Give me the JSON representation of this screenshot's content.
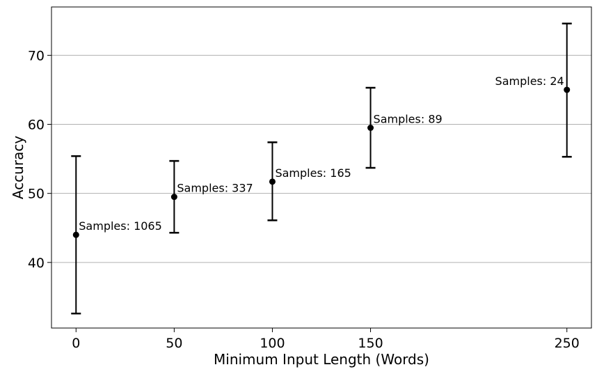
{
  "chart_data": {
    "type": "scatter",
    "title": "",
    "xlabel": "Minimum Input Length (Words)",
    "ylabel": "Accuracy",
    "xlim": [
      -12.5,
      262.5
    ],
    "ylim": [
      30.5,
      77
    ],
    "xticks": [
      0,
      50,
      100,
      150,
      250
    ],
    "yticks": [
      40,
      50,
      60,
      70
    ],
    "grid": "horizontal",
    "points": [
      {
        "x": 0,
        "y": 44.0,
        "err_low": 32.6,
        "err_high": 55.4,
        "label": "Samples: 1065",
        "label_side": "right"
      },
      {
        "x": 50,
        "y": 49.5,
        "err_low": 44.3,
        "err_high": 54.7,
        "label": "Samples: 337",
        "label_side": "right"
      },
      {
        "x": 100,
        "y": 51.7,
        "err_low": 46.1,
        "err_high": 57.4,
        "label": "Samples: 165",
        "label_side": "right"
      },
      {
        "x": 150,
        "y": 59.5,
        "err_low": 53.7,
        "err_high": 65.3,
        "label": "Samples: 89",
        "label_side": "right"
      },
      {
        "x": 250,
        "y": 65.0,
        "err_low": 55.3,
        "err_high": 74.6,
        "label": "Samples: 24",
        "label_side": "left"
      }
    ],
    "colors": {
      "marker": "#000000",
      "grid": "#b0b0b0",
      "axes": "#000000"
    }
  }
}
